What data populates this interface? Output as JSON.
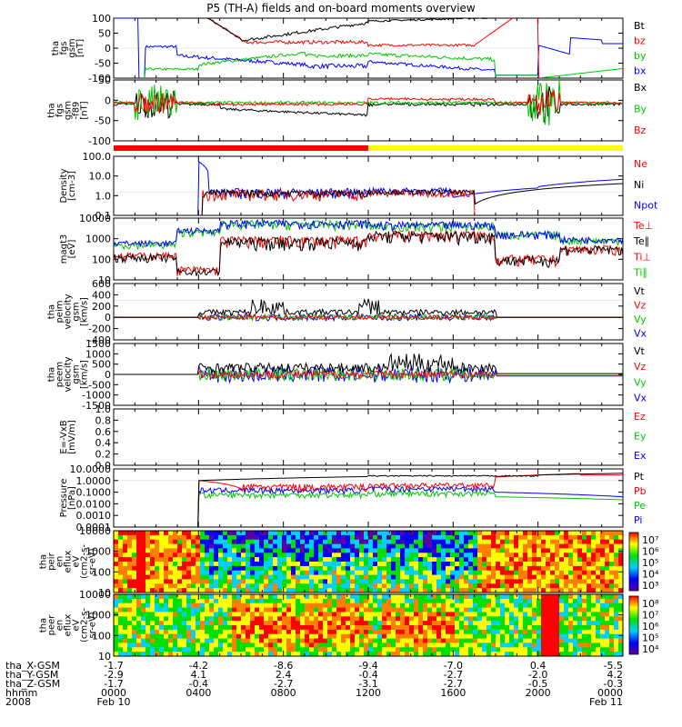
{
  "chart_data": {
    "type": "line",
    "title": "P5 (TH-A) fields and on-board moments overview",
    "panels": [
      {
        "id": "fgs",
        "ylabel": [
          "tha",
          "fgs",
          "gsm",
          "[nT]"
        ],
        "scale": "linear",
        "ylim": [
          -100,
          100
        ],
        "ticks": [
          "100",
          "50",
          "0",
          "-50",
          "-100"
        ],
        "legend": [
          {
            "name": "Bt",
            "color": "#000000"
          },
          {
            "name": "bz",
            "color": "#ff0000"
          },
          {
            "name": "by",
            "color": "#00c800"
          },
          {
            "name": "bx",
            "color": "#0000ff"
          }
        ]
      },
      {
        "id": "fgs_hp",
        "ylabel": [
          "tha",
          "fgs",
          "gsm",
          "-f89",
          "[nT]"
        ],
        "scale": "linear",
        "ylim": [
          -125,
          75
        ],
        "ticks": [
          "50",
          "0",
          "-50",
          "-100"
        ],
        "legend": [
          {
            "name": "Bx",
            "color": "#000000"
          },
          {
            "name": "By",
            "color": "#00c800"
          },
          {
            "name": "Bz",
            "color": "#ff0000"
          }
        ]
      },
      {
        "id": "density",
        "ylabel": [
          "Density",
          "[cm-3]"
        ],
        "scale": "log",
        "ylim": [
          0.05,
          100
        ],
        "ticks": [
          "100.0",
          "10.0",
          "1.0",
          "0.1"
        ],
        "legend": [
          {
            "name": "Ne",
            "color": "#ff0000"
          },
          {
            "name": "Ni",
            "color": "#000000"
          },
          {
            "name": "Npot",
            "color": "#0000ff"
          }
        ]
      },
      {
        "id": "temp",
        "ylabel": [
          "magt3",
          "[eV]"
        ],
        "scale": "log",
        "ylim": [
          10,
          10000
        ],
        "ticks": [
          "10000",
          "1000",
          "100",
          "10"
        ],
        "legend": [
          {
            "name": "Te⊥",
            "color": "#ff0000"
          },
          {
            "name": "Te∥",
            "color": "#000000"
          },
          {
            "name": "Ti⊥",
            "color": "#ff0000"
          },
          {
            "name": "Ti∥",
            "color": "#00c800"
          }
        ]
      },
      {
        "id": "peim_v",
        "ylabel": [
          "tha",
          "peim",
          "velocity",
          "gsm",
          "[km/s]"
        ],
        "scale": "linear",
        "ylim": [
          -400,
          600
        ],
        "ticks": [
          "600",
          "400",
          "200",
          "0",
          "-200",
          "-400"
        ],
        "legend": [
          {
            "name": "Vt",
            "color": "#000000"
          },
          {
            "name": "Vz",
            "color": "#ff0000"
          },
          {
            "name": "Vy",
            "color": "#00c800"
          },
          {
            "name": "Vx",
            "color": "#0000ff"
          }
        ]
      },
      {
        "id": "peem_v",
        "ylabel": [
          "tha",
          "peem",
          "velocity",
          "gsm",
          "[km/s]"
        ],
        "scale": "linear",
        "ylim": [
          -1500,
          1500
        ],
        "ticks": [
          "1500",
          "1000",
          "500",
          "0",
          "-500",
          "-1000",
          "-1500"
        ],
        "legend": [
          {
            "name": "Vt",
            "color": "#000000"
          },
          {
            "name": "Vz",
            "color": "#ff0000"
          },
          {
            "name": "Vy",
            "color": "#00c800"
          },
          {
            "name": "Vx",
            "color": "#0000ff"
          }
        ]
      },
      {
        "id": "efield",
        "ylabel": [
          "E=-VxB",
          "[mV/m]"
        ],
        "scale": "linear",
        "ylim": [
          0.0,
          1.0
        ],
        "ticks": [
          "1.0",
          "0.8",
          "0.6",
          "0.4",
          "0.2",
          "0.0"
        ],
        "legend": [
          {
            "name": "Ez",
            "color": "#ff0000"
          },
          {
            "name": "Ey",
            "color": "#00c800"
          },
          {
            "name": "Ex",
            "color": "#0000ff"
          }
        ]
      },
      {
        "id": "pressure",
        "ylabel": [
          "Pressure",
          "[nPa]"
        ],
        "scale": "log",
        "ylim": [
          0.0001,
          10
        ],
        "ticks": [
          "10.0000",
          "1.0000",
          "0.1000",
          "0.0100",
          "0.0010",
          "0.0001"
        ],
        "legend": [
          {
            "name": "Pt",
            "color": "#000000"
          },
          {
            "name": "Pb",
            "color": "#ff0000"
          },
          {
            "name": "Pe",
            "color": "#00c800"
          },
          {
            "name": "Pi",
            "color": "#0000ff"
          }
        ]
      },
      {
        "id": "peir_spec",
        "type": "heatmap",
        "ylabel": [
          "tha",
          "peir",
          "en",
          "eflux",
          "eV",
          "(cm2-s-",
          "sr-eV)"
        ],
        "scale": "log",
        "ylim": [
          7,
          20000
        ],
        "ticks": [
          "10000",
          "1000",
          "100",
          "10"
        ],
        "colorbar": [
          "10⁷",
          "10⁶",
          "10⁵",
          "10⁴",
          "10³"
        ]
      },
      {
        "id": "peer_spec",
        "type": "heatmap",
        "ylabel": [
          "tha",
          "peer",
          "en",
          "eflux",
          "eV",
          "(cm2-s-",
          "sr-eV)"
        ],
        "scale": "log",
        "ylim": [
          7,
          20000
        ],
        "ticks": [
          "10000",
          "1000",
          "100",
          "10"
        ],
        "colorbar": [
          "10⁸",
          "10⁷",
          "10⁶",
          "10⁵",
          "10⁴"
        ]
      }
    ],
    "ephemeris": {
      "row_labels": [
        "tha_X-GSM",
        "tha_Y-GSM",
        "tha_Z-GSM",
        "hhmm",
        "2008"
      ],
      "columns": [
        {
          "x": "-1.7",
          "y": "-2.9",
          "z": "-1.7",
          "t": "0000",
          "d": "Feb 10"
        },
        {
          "x": "-4.2",
          "y": "4.1",
          "z": "-0.4",
          "t": "0400",
          "d": ""
        },
        {
          "x": "-8.6",
          "y": "2.4",
          "z": "-2.7",
          "t": "0800",
          "d": ""
        },
        {
          "x": "-9.4",
          "y": "-0.4",
          "z": "-3.1",
          "t": "1200",
          "d": ""
        },
        {
          "x": "-7.0",
          "y": "-2.7",
          "z": "-2.7",
          "t": "1600",
          "d": ""
        },
        {
          "x": "0.4",
          "y": "-2.0",
          "z": "-0.5",
          "t": "2000",
          "d": ""
        },
        {
          "x": "-5.5",
          "y": "4.2",
          "z": "-0.3",
          "t": "0000",
          "d": "Feb 11"
        }
      ]
    },
    "mode_bar": [
      {
        "from": 0,
        "to": 12,
        "color": "#ff0000"
      },
      {
        "from": 12,
        "to": 24,
        "color": "#ffff00"
      }
    ]
  }
}
